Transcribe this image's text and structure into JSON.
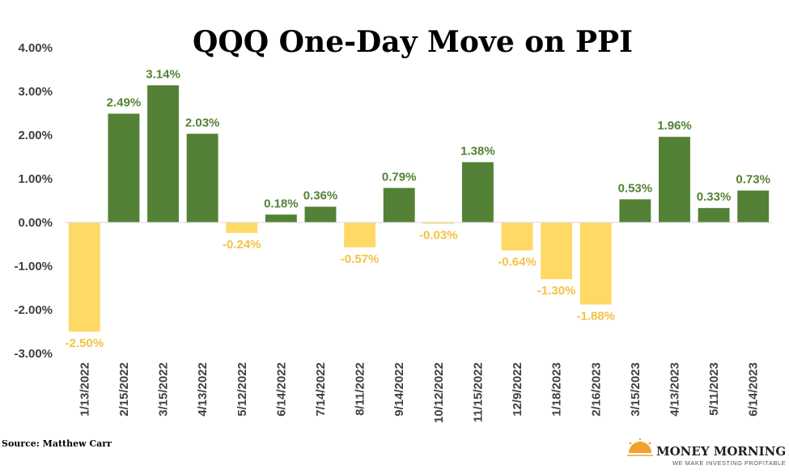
{
  "chart_data": {
    "type": "bar",
    "title": "QQQ One-Day Move on PPI",
    "xlabel": "",
    "ylabel": "",
    "ylim": [
      -3.0,
      4.0
    ],
    "yticks": [
      "-3.00%",
      "-2.00%",
      "-1.00%",
      "0.00%",
      "1.00%",
      "2.00%",
      "3.00%",
      "4.00%"
    ],
    "ytick_values": [
      -3,
      -2,
      -1,
      0,
      1,
      2,
      3,
      4
    ],
    "grid": false,
    "categories": [
      "1/13/2022",
      "2/15/2022",
      "3/15/2022",
      "4/13/2022",
      "5/12/2022",
      "6/14/2022",
      "7/14/2022",
      "8/11/2022",
      "9/14/2022",
      "10/12/2022",
      "11/15/2022",
      "12/9/2022",
      "1/18/2023",
      "2/16/2023",
      "3/15/2023",
      "4/13/2023",
      "5/11/2023",
      "6/14/2023"
    ],
    "values": [
      -2.5,
      2.49,
      3.14,
      2.03,
      -0.24,
      0.18,
      0.36,
      -0.57,
      0.79,
      -0.03,
      1.38,
      -0.64,
      -1.3,
      -1.88,
      0.53,
      1.96,
      0.33,
      0.73
    ],
    "value_labels": [
      "-2.50%",
      "2.49%",
      "3.14%",
      "2.03%",
      "-0.24%",
      "0.18%",
      "0.36%",
      "-0.57%",
      "0.79%",
      "-0.03%",
      "1.38%",
      "-0.64%",
      "-1.30%",
      "-1.88%",
      "0.53%",
      "1.96%",
      "0.33%",
      "0.73%"
    ]
  },
  "colors": {
    "positive_bar": "#538135",
    "negative_bar": "#FFD966",
    "positive_label": "#548235",
    "negative_label": "#F4C243",
    "axis_text": "#404040",
    "axis_line": "#D9D9D9",
    "logo_sun": "#F0A22E"
  },
  "footer": {
    "source": "Source: Matthew Carr",
    "brand_name": "MONEY MORNING",
    "brand_tagline": "WE MAKE INVESTING PROFITABLE"
  }
}
